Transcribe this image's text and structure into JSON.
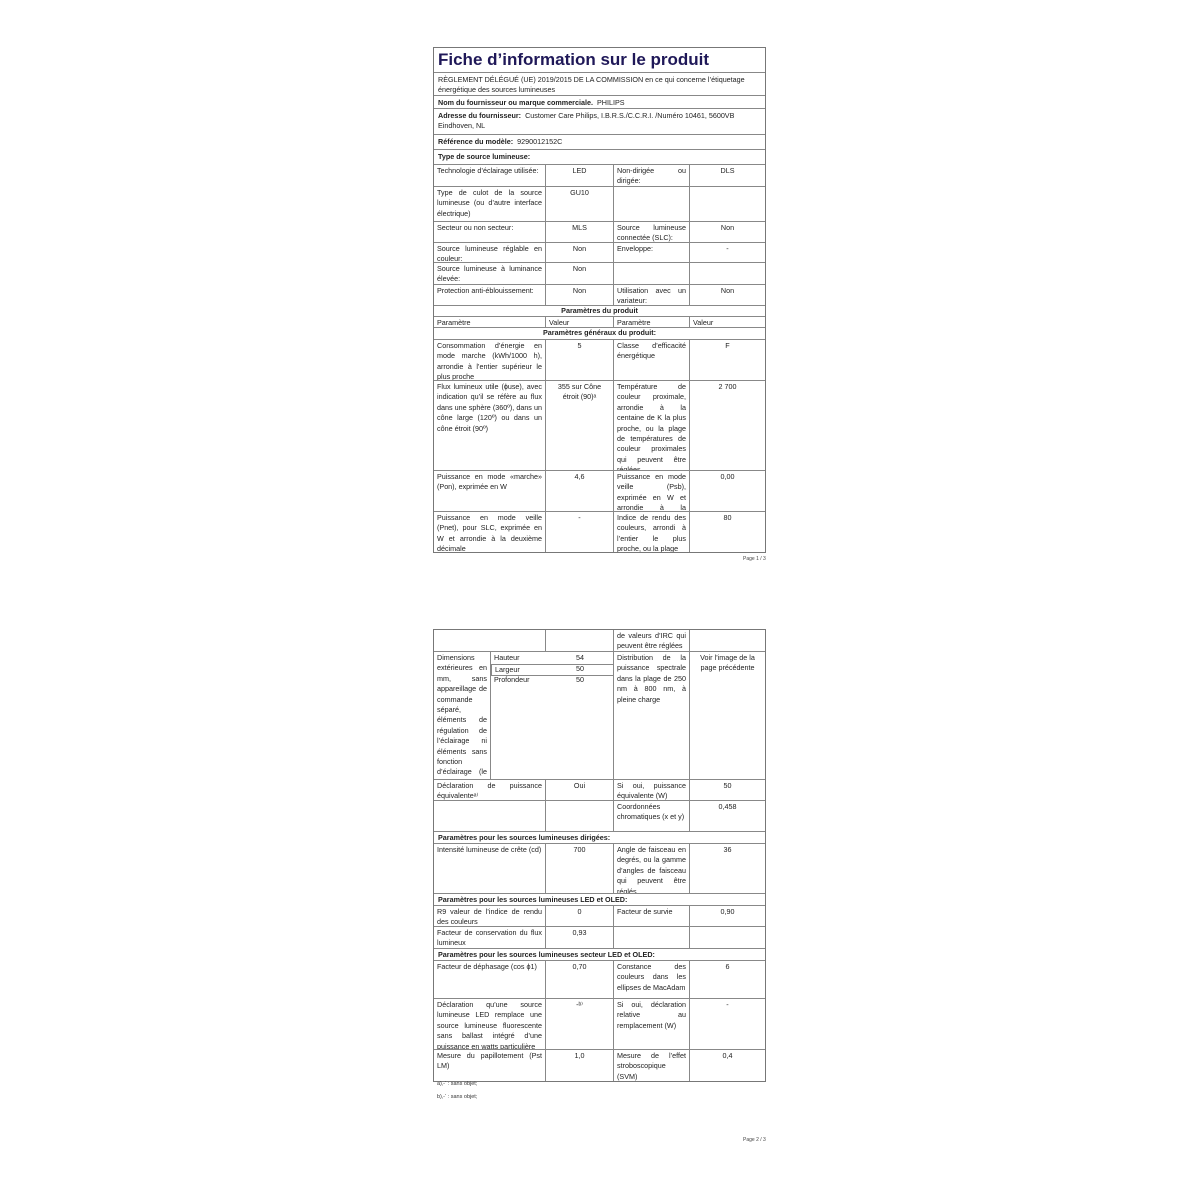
{
  "page1": {
    "title": "Fiche d’information sur le produit",
    "regulation": "RÈGLEMENT DÉLÉGUÉ (UE) 2019/2015 DE LA COMMISSION en ce qui concerne l’étiquetage énergétique des sources lumineuses",
    "supplier_name_label": "Nom du fournisseur ou marque commerciale.",
    "supplier_name": "PHILIPS",
    "supplier_address_label": "Adresse du fournisseur:",
    "supplier_address": "Customer Care Philips, I.B.R.S./C.C.R.I. /Numéro 10461, 5600VB Eindhoven, NL",
    "model_label": "Référence du modèle:",
    "model": "9290012152C",
    "source_type_label": "Type de source lumineuse:",
    "rows": [
      {
        "cells": [
          "Technologie d’éclairage utilisée:",
          "LED",
          "Non-dirigée ou dirigée:",
          "DLS"
        ]
      },
      {
        "cells": [
          "Type de culot de la source lumineuse (ou d’autre interface électrique)",
          "GU10",
          "",
          ""
        ]
      },
      {
        "cells": [
          "Secteur ou non secteur:",
          "MLS",
          "Source lumineuse connectée (SLC):",
          "Non"
        ]
      },
      {
        "cells": [
          "Source lumineuse réglable en couleur:",
          "Non",
          "Enveloppe:",
          "-"
        ]
      },
      {
        "cells": [
          "Source lumineuse à luminance élevée:",
          "Non",
          "",
          ""
        ]
      },
      {
        "cells": [
          "Protection anti-éblouissement:",
          "Non",
          "Utilisation avec un variateur:",
          "Non"
        ]
      },
      {
        "section": "Paramètres du produit"
      },
      {
        "header": [
          "Paramètre",
          "Valeur",
          "Paramètre",
          "Valeur"
        ]
      },
      {
        "section": "Paramètres généraux du produit:"
      },
      {
        "cells": [
          "Consommation d’énergie en mode marche (kWh/1000 h), arrondie à l’entier supérieur le plus proche",
          "5",
          "Classe d’efficacité énergétique",
          "F"
        ]
      },
      {
        "cells": [
          "Flux lumineux utile (ɸuse), avec indication qu’il se réfère au flux dans une sphère (360º), dans un cône large (120º) ou dans un cône étroit (90º)",
          "355 sur Cône étroit (90)ᵃ",
          "Température de couleur proximale, arrondie à la centaine de K la plus proche, ou la plage de températures de couleur proximales qui peuvent être réglées",
          "2 700"
        ]
      },
      {
        "cells": [
          "Puissance en mode «marche» (Pon), exprimée en W",
          "4,6",
          "Puissance en mode veille (Psb), exprimée en W et arrondie à la deuxième décimale",
          "0,00"
        ]
      },
      {
        "cells": [
          "Puissance en mode veille (Pnet), pour SLC, exprimée en W et arrondie à la deuxième décimale",
          "-",
          "Indice de rendu des couleurs, arrondi à l’entier le plus proche, ou la plage",
          "80"
        ]
      }
    ],
    "page_label": "Page 1 / 3"
  },
  "page2": {
    "rows": [
      {
        "cells": [
          "",
          "",
          "de valeurs d’IRC qui peuvent être réglées",
          ""
        ]
      },
      {
        "dims": {
          "label": "Dimensions extérieures en mm, sans appareillage de commande séparé, éléments de régulation de l’éclairage ni éléments sans fonction d’éclairage (le cas échéant)",
          "sub": [
            {
              "name": "Hauteur",
              "value": "54"
            },
            {
              "name": "Largeur",
              "value": "50"
            },
            {
              "name": "Profondeur",
              "value": "50"
            }
          ]
        },
        "cells": [
          "",
          "",
          "Distribution de la puissance spectrale dans la plage de 250 nm à 800 nm, à pleine charge",
          "Voir l’image de la page précédente"
        ]
      },
      {
        "cells": [
          "Déclaration de puissance équivalenteᵃ⁾",
          "Oui",
          "Si oui, puissance équivalente (W)",
          "50"
        ]
      },
      {
        "cells": [
          "",
          "",
          "Coordonnées chromatiques (x et y)",
          "0,458"
        ]
      },
      {
        "sechead": "Paramètres pour les sources lumineuses dirigées:"
      },
      {
        "cells": [
          "Intensité lumineuse de crête (cd)",
          "700",
          "Angle de faisceau en degrés, ou la gamme d’angles de faisceau qui peuvent être réglés",
          "36"
        ]
      },
      {
        "sechead": "Paramètres pour les sources lumineuses LED et OLED:"
      },
      {
        "cells": [
          "R9 valeur de l’indice de rendu des couleurs",
          "0",
          "Facteur de survie",
          "0,90"
        ]
      },
      {
        "cells": [
          "Facteur de conservation du flux lumineux",
          "0,93",
          "",
          ""
        ]
      },
      {
        "sechead": "Paramètres pour les sources lumineuses secteur LED et OLED:"
      },
      {
        "cells": [
          "Facteur de déphasage (cos ϕ1)",
          "0,70",
          "Constance des couleurs dans les ellipses de MacAdam",
          "6"
        ]
      },
      {
        "cells": [
          "Déclaration qu’une source lumineuse LED remplace une source lumineuse fluorescente sans ballast intégré d’une puissance en watts particulière",
          "-ᵇ⁾",
          "Si oui, déclaration relative au remplacement (W)",
          "-"
        ]
      },
      {
        "cells": [
          "Mesure du papillotement (Pst LM)",
          "1,0",
          "Mesure de l’effet stroboscopique (SVM)",
          "0,4"
        ]
      }
    ],
    "footnotes": [
      "a)‚-‘ : sans objet;",
      "b)‚-‘ : sans objet;"
    ],
    "page_label": "Page 2 / 3"
  }
}
